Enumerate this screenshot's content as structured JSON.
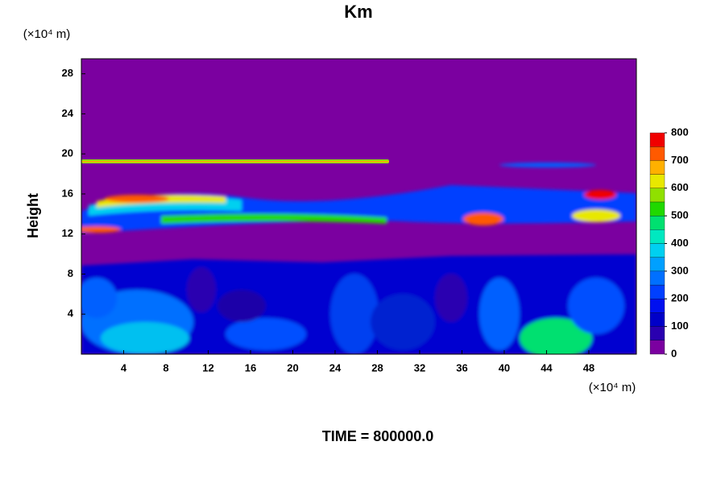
{
  "chart_data": {
    "type": "contour",
    "title": "Km",
    "ylabel": "Height",
    "x_unit_label": "(×10⁴ m)",
    "y_unit_label": "(×10⁴ m)",
    "xlim": [
      0,
      52.5
    ],
    "ylim": [
      0,
      29.5
    ],
    "xticks": [
      4,
      8,
      12,
      16,
      20,
      24,
      28,
      32,
      36,
      40,
      44,
      48
    ],
    "yticks": [
      4,
      8,
      12,
      16,
      20,
      24,
      28
    ],
    "colorbar": {
      "levels": [
        0,
        50,
        100,
        150,
        200,
        250,
        300,
        350,
        400,
        450,
        500,
        550,
        600,
        650,
        700,
        750,
        800
      ],
      "colors": [
        "#7b00a0",
        "#2a00b0",
        "#0000c8",
        "#0010f0",
        "#0040ff",
        "#0070ff",
        "#00a0ff",
        "#00d0f0",
        "#00e8c0",
        "#00e070",
        "#20d800",
        "#90e000",
        "#e8e800",
        "#ffb000",
        "#ff5a00",
        "#f00000"
      ],
      "ticks": [
        0,
        100,
        200,
        300,
        400,
        500,
        600,
        700,
        800
      ]
    },
    "footer": "TIME = 800000.0"
  }
}
